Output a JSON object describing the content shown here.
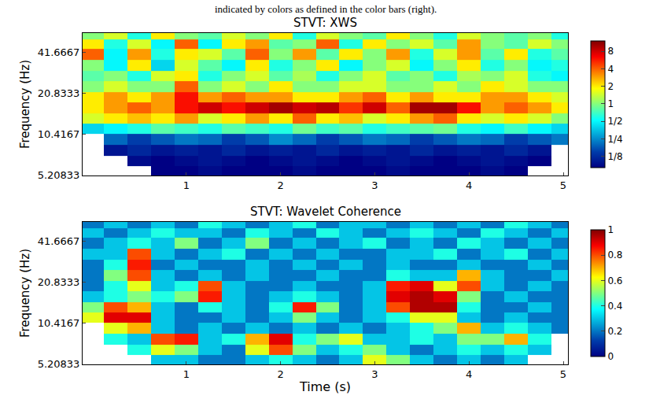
{
  "caption": "indicated by colors as defined in the color bars (right).",
  "chart_data": [
    {
      "type": "heatmap",
      "title": "STVT: XWS",
      "ylabel": "Frequency (Hz)",
      "log": "y",
      "xlim": [
        -0.1,
        5.05
      ],
      "ylim": [
        5.15,
        58
      ],
      "xticks": [
        1,
        2,
        3,
        4,
        5
      ],
      "yticks": [
        5.20833,
        10.4167,
        20.8333,
        41.6667
      ],
      "x": [
        0,
        0.25,
        0.5,
        0.75,
        1,
        1.25,
        1.5,
        1.75,
        2,
        2.25,
        2.5,
        2.75,
        3,
        3.25,
        3.5,
        3.75,
        4,
        4.25,
        4.5,
        4.75,
        5
      ],
      "y": [
        5.5,
        6.6,
        7.9,
        9.5,
        11.4,
        13.6,
        16.3,
        19.5,
        23.4,
        28,
        33.6,
        40.3,
        48.3,
        56
      ],
      "cells": [
        [
          null,
          null,
          null,
          0.08,
          0.07,
          0.09,
          0.08,
          0.07,
          0.08,
          0.09,
          0.08,
          0.07,
          0.08,
          0.09,
          0.08,
          0.07,
          0.08,
          0.09,
          0.08,
          null,
          null
        ],
        [
          null,
          null,
          0.09,
          0.08,
          0.09,
          0.1,
          0.09,
          0.08,
          0.09,
          0.1,
          0.09,
          0.08,
          0.09,
          0.1,
          0.09,
          0.08,
          0.09,
          0.1,
          0.09,
          0.08,
          null
        ],
        [
          null,
          0.1,
          0.12,
          0.1,
          0.11,
          0.1,
          0.12,
          0.1,
          0.11,
          0.1,
          0.12,
          0.1,
          0.11,
          0.1,
          0.12,
          0.1,
          0.11,
          0.1,
          0.12,
          0.1,
          null
        ],
        [
          null,
          0.2,
          0.15,
          0.18,
          0.22,
          0.2,
          0.15,
          0.18,
          0.25,
          0.2,
          0.15,
          0.18,
          0.22,
          0.2,
          0.15,
          0.18,
          0.22,
          0.2,
          0.15,
          0.18,
          0.22
        ],
        [
          0.4,
          0.5,
          0.6,
          0.8,
          0.7,
          0.6,
          0.8,
          0.7,
          0.6,
          0.9,
          0.7,
          0.8,
          0.6,
          0.7,
          0.8,
          0.9,
          0.6,
          0.5,
          0.7,
          0.5,
          0.4
        ],
        [
          1.5,
          2,
          2.5,
          2,
          3,
          1.5,
          2,
          3,
          2,
          4,
          2,
          2.5,
          1.5,
          2,
          3,
          4,
          2,
          1.5,
          2,
          1.5,
          1
        ],
        [
          2,
          3,
          4,
          3,
          6,
          8,
          6,
          8,
          10,
          8,
          9,
          5,
          8,
          4,
          10,
          10,
          6,
          3,
          4,
          3,
          2
        ],
        [
          2,
          3,
          2,
          3,
          6,
          3,
          4,
          3,
          3,
          2,
          2,
          3,
          4,
          2,
          3,
          2,
          2,
          3,
          3,
          2,
          1.5
        ],
        [
          1,
          1.5,
          1,
          1,
          4,
          1,
          1.5,
          1,
          2,
          1,
          1,
          1.5,
          1.5,
          1,
          1,
          1.5,
          1,
          2,
          1.5,
          1,
          1
        ],
        [
          0.8,
          1,
          0.6,
          1.5,
          2,
          0.6,
          1,
          1.5,
          0.8,
          1.2,
          0.6,
          1,
          1.5,
          0.8,
          1,
          0.6,
          1.2,
          1,
          1.5,
          0.6,
          0.5
        ],
        [
          1,
          0.5,
          2,
          0.4,
          1.5,
          0.8,
          0.5,
          2,
          0.6,
          1,
          2,
          0.5,
          1,
          1.5,
          0.5,
          1,
          2,
          0.6,
          1,
          0.5,
          0.6
        ],
        [
          4,
          0.5,
          3,
          0.6,
          2,
          1.5,
          0.8,
          4,
          1,
          3,
          0.8,
          2,
          1,
          3,
          0.6,
          1.5,
          3,
          0.8,
          2,
          0.6,
          0.8
        ],
        [
          2,
          0.6,
          1.5,
          0.5,
          4,
          0.5,
          2,
          3,
          0.8,
          1,
          4,
          0.6,
          2,
          1,
          1.5,
          0.8,
          3,
          1,
          0.8,
          1.5,
          1
        ],
        [
          1,
          1.5,
          0.6,
          2,
          1,
          0.8,
          1.5,
          1,
          2,
          0.6,
          1.5,
          1,
          0.8,
          2,
          1,
          0.6,
          1.5,
          1,
          0.8,
          1,
          0.6
        ]
      ],
      "colorbar": {
        "log": true,
        "range": [
          0.08,
          12
        ],
        "ticks": [
          {
            "value": 0.125,
            "label": "1/8"
          },
          {
            "value": 0.25,
            "label": "1/4"
          },
          {
            "value": 0.5,
            "label": "1/2"
          },
          1,
          2,
          4,
          8
        ]
      }
    },
    {
      "type": "heatmap",
      "title": "STVT: Wavelet Coherence",
      "xlabel": "Time (s)",
      "ylabel": "Frequency (Hz)",
      "log": "y",
      "xlim": [
        -0.1,
        5.05
      ],
      "ylim": [
        5.15,
        58
      ],
      "xticks": [
        1,
        2,
        3,
        4,
        5
      ],
      "yticks": [
        5.20833,
        10.4167,
        20.8333,
        41.6667
      ],
      "x": [
        0,
        0.25,
        0.5,
        0.75,
        1,
        1.25,
        1.5,
        1.75,
        2,
        2.25,
        2.5,
        2.75,
        3,
        3.25,
        3.5,
        3.75,
        4,
        4.25,
        4.5,
        4.75,
        5
      ],
      "y": [
        5.5,
        6.6,
        7.9,
        9.5,
        11.4,
        13.6,
        16.3,
        19.5,
        23.4,
        28,
        33.6,
        40.3,
        48.3,
        56
      ],
      "cells": [
        [
          null,
          null,
          null,
          0.3,
          0.3,
          0.2,
          0.2,
          0.3,
          0.4,
          0.3,
          0.2,
          0.3,
          0.6,
          0.5,
          0.3,
          0.2,
          0.3,
          0.2,
          0.3,
          null,
          null
        ],
        [
          null,
          null,
          0.4,
          0.6,
          0.5,
          0.3,
          0.2,
          0.6,
          0.8,
          0.5,
          0.3,
          0.4,
          0.5,
          0.3,
          0.2,
          0.3,
          0.4,
          0.3,
          0.4,
          0.3,
          null
        ],
        [
          null,
          0.4,
          0.3,
          0.8,
          0.85,
          0.3,
          0.4,
          0.7,
          0.9,
          0.4,
          0.5,
          0.6,
          0.3,
          0.3,
          0.4,
          0.3,
          0.5,
          0.5,
          0.7,
          0.4,
          null
        ],
        [
          null,
          0.6,
          0.7,
          0.3,
          0.2,
          0.3,
          0.2,
          0.3,
          0.2,
          0.3,
          0.2,
          0.3,
          0.2,
          0.3,
          0.4,
          0.5,
          0.7,
          0.3,
          0.4,
          0.3,
          0.2
        ],
        [
          0.6,
          0.9,
          0.9,
          0.3,
          0.2,
          0.2,
          0.3,
          0.2,
          0.3,
          0.5,
          0.3,
          0.2,
          0.3,
          0.4,
          0.6,
          0.6,
          0.3,
          0.2,
          0.3,
          0.2,
          0.2
        ],
        [
          0.5,
          0.8,
          0.7,
          0.3,
          0.2,
          0.4,
          0.3,
          0.2,
          0.4,
          0.85,
          0.5,
          0.2,
          0.3,
          0.8,
          0.95,
          0.95,
          0.4,
          0.2,
          0.2,
          0.3,
          0.2
        ],
        [
          0.3,
          0.4,
          0.5,
          0.4,
          0.5,
          0.85,
          0.3,
          0.2,
          0.3,
          0.4,
          0.3,
          0.2,
          0.3,
          0.9,
          0.95,
          0.9,
          0.5,
          0.2,
          0.3,
          0.2,
          0.2
        ],
        [
          0.2,
          0.4,
          0.6,
          0.3,
          0.4,
          0.8,
          0.3,
          0.2,
          0.2,
          0.3,
          0.2,
          0.2,
          0.3,
          0.85,
          0.9,
          0.6,
          0.8,
          0.3,
          0.2,
          0.3,
          0.2
        ],
        [
          0.2,
          0.5,
          0.8,
          0.3,
          0.2,
          0.3,
          0.2,
          0.3,
          0.2,
          0.2,
          0.3,
          0.2,
          0.2,
          0.4,
          0.3,
          0.3,
          0.7,
          0.3,
          0.2,
          0.2,
          0.3
        ],
        [
          0.2,
          0.4,
          0.85,
          0.2,
          0.3,
          0.2,
          0.2,
          0.3,
          0.2,
          0.3,
          0.2,
          0.3,
          0.2,
          0.3,
          0.2,
          0.2,
          0.3,
          0.2,
          0.2,
          0.3,
          0.2
        ],
        [
          0.3,
          0.3,
          0.8,
          0.3,
          0.2,
          0.3,
          0.4,
          0.2,
          0.3,
          0.2,
          0.3,
          0.2,
          0.2,
          0.3,
          0.3,
          0.4,
          0.2,
          0.3,
          0.4,
          0.2,
          0.3
        ],
        [
          0.2,
          0.3,
          0.4,
          0.3,
          0.5,
          0.2,
          0.3,
          0.5,
          0.2,
          0.3,
          0.2,
          0.3,
          0.4,
          0.2,
          0.3,
          0.2,
          0.4,
          0.3,
          0.2,
          0.3,
          0.2
        ],
        [
          0.3,
          0.2,
          0.3,
          0.4,
          0.3,
          0.3,
          0.2,
          0.4,
          0.3,
          0.2,
          0.4,
          0.3,
          0.2,
          0.3,
          0.4,
          0.3,
          0.2,
          0.4,
          0.3,
          0.2,
          0.3
        ],
        [
          0.2,
          0.3,
          0.2,
          0.3,
          0.2,
          0.4,
          0.3,
          0.2,
          0.3,
          0.4,
          0.2,
          0.3,
          0.3,
          0.2,
          0.3,
          0.2,
          0.3,
          0.2,
          0.4,
          0.3,
          0.2
        ]
      ],
      "colorbar": {
        "log": false,
        "range": [
          0,
          1
        ],
        "ticks": [
          0,
          0.2,
          0.4,
          0.6,
          0.8,
          1
        ]
      }
    }
  ]
}
